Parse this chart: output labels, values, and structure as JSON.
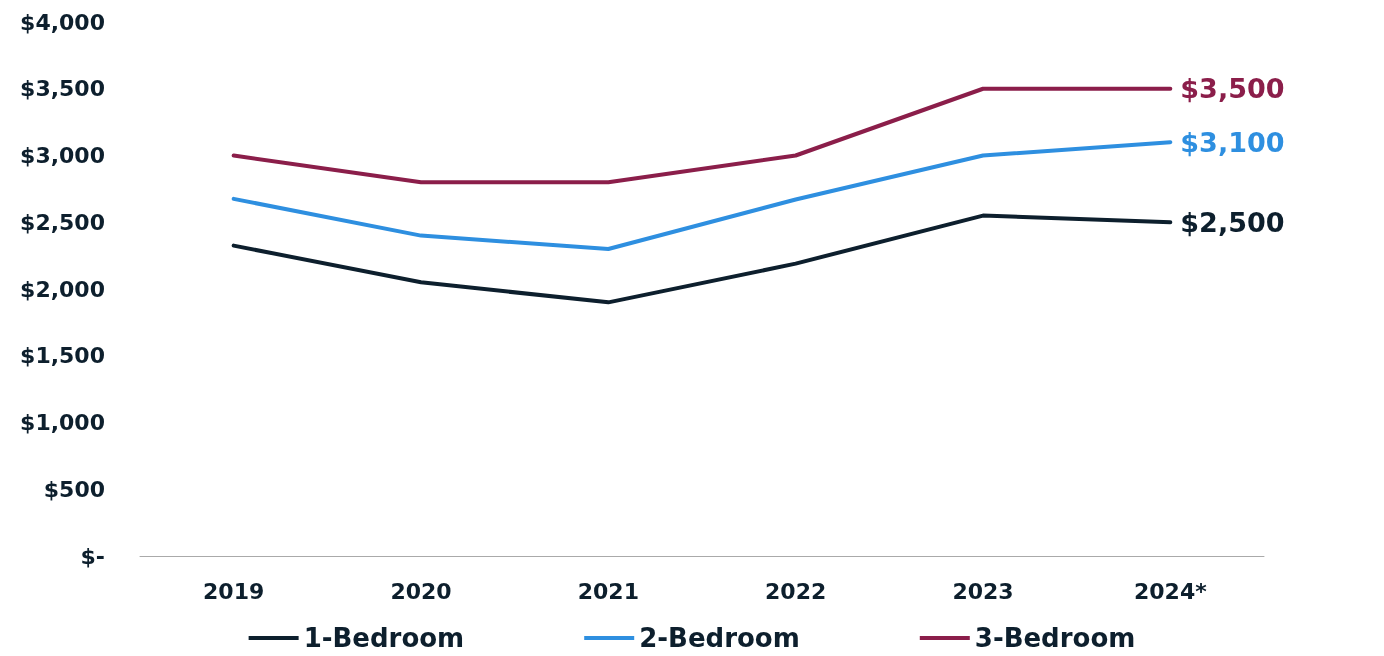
{
  "chart_data": {
    "type": "line",
    "categories": [
      "2019",
      "2020",
      "2021",
      "2022",
      "2023",
      "2024*"
    ],
    "series": [
      {
        "name": "1-Bedroom",
        "color": "#0d1f2d",
        "values": [
          2325,
          2050,
          1900,
          2190,
          2550,
          2500
        ],
        "value_labels": [
          null,
          null,
          null,
          null,
          null,
          "$2,500"
        ]
      },
      {
        "name": "2-Bedroom",
        "color": "#2e8fe0",
        "values": [
          2675,
          2400,
          2300,
          2670,
          3000,
          3100
        ],
        "value_labels": [
          null,
          null,
          null,
          null,
          null,
          "$3,100"
        ]
      },
      {
        "name": "3-Bedroom",
        "color": "#8b1e4a",
        "values": [
          3000,
          2800,
          2800,
          3000,
          3500,
          3500
        ],
        "value_labels": [
          null,
          null,
          null,
          null,
          null,
          "$3,500"
        ]
      }
    ],
    "ylim": [
      0,
      4000
    ],
    "yticks": [
      {
        "value": 0,
        "label": "$-"
      },
      {
        "value": 500,
        "label": "$500"
      },
      {
        "value": 1000,
        "label": "$1,000"
      },
      {
        "value": 1500,
        "label": "$1,500"
      },
      {
        "value": 2000,
        "label": "$2,000"
      },
      {
        "value": 2500,
        "label": "$2,500"
      },
      {
        "value": 3000,
        "label": "$3,000"
      },
      {
        "value": 3500,
        "label": "$3,500"
      },
      {
        "value": 4000,
        "label": "$4,000"
      }
    ],
    "grid": false,
    "legend": "bottom",
    "marker": "none",
    "line_style": "solid"
  }
}
